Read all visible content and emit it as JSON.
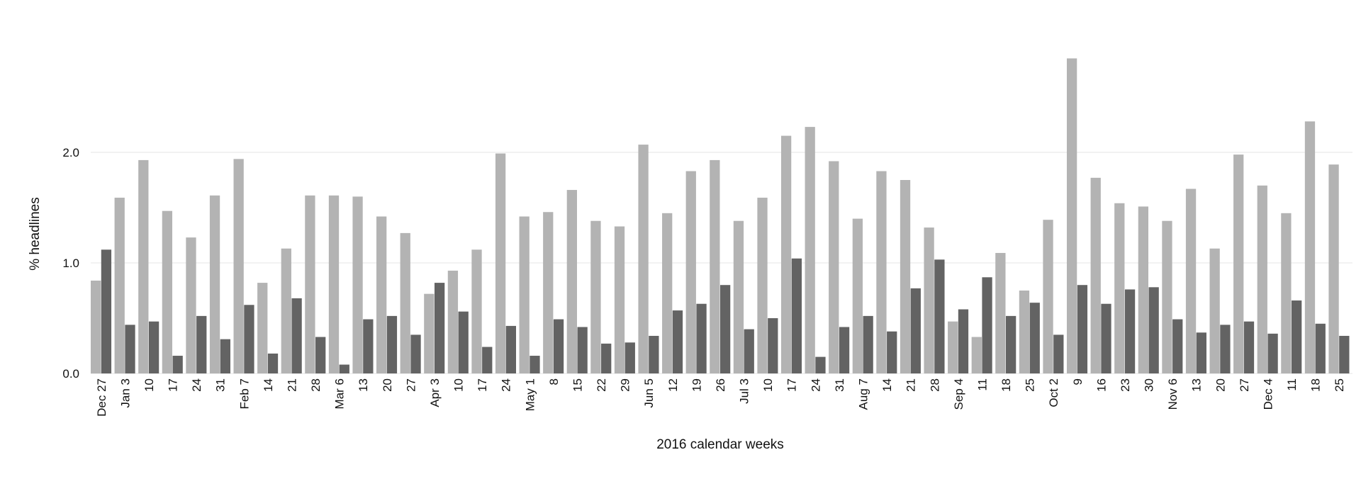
{
  "chart_data": {
    "type": "bar",
    "title": "",
    "xlabel": "2016 calendar weeks",
    "ylabel": "% headlines",
    "ylim": [
      0,
      3.0
    ],
    "yticks": [
      "0.0",
      "1.0",
      "2.0"
    ],
    "grid": true,
    "legend": "none",
    "categories": [
      "Dec 27",
      "Jan 3",
      "10",
      "17",
      "24",
      "31",
      "Feb 7",
      "14",
      "21",
      "28",
      "Mar 6",
      "13",
      "20",
      "27",
      "Apr 3",
      "10",
      "17",
      "24",
      "May 1",
      "8",
      "15",
      "22",
      "29",
      "Jun 5",
      "12",
      "19",
      "26",
      "Jul 3",
      "10",
      "17",
      "24",
      "31",
      "Aug 7",
      "14",
      "21",
      "28",
      "Sep 4",
      "11",
      "18",
      "25",
      "Oct 2",
      "9",
      "16",
      "23",
      "30",
      "Nov 6",
      "13",
      "20",
      "27",
      "Dec 4",
      "11",
      "18",
      "25"
    ],
    "series": [
      {
        "color": "#b3b3b3",
        "values": [
          0.84,
          1.59,
          1.93,
          1.47,
          1.23,
          1.61,
          1.94,
          0.82,
          1.13,
          1.61,
          1.61,
          1.6,
          1.42,
          1.27,
          0.72,
          0.93,
          1.12,
          1.99,
          1.42,
          1.46,
          1.66,
          1.38,
          1.33,
          2.07,
          1.45,
          1.83,
          1.93,
          1.38,
          1.59,
          2.15,
          2.23,
          1.92,
          1.4,
          1.83,
          1.75,
          1.32,
          0.47,
          0.33,
          1.09,
          0.75,
          1.39,
          2.85,
          1.77,
          1.54,
          1.51,
          1.38,
          1.67,
          1.13,
          1.98,
          1.7,
          1.45,
          2.28,
          1.89
        ]
      },
      {
        "color": "#636363",
        "values": [
          1.12,
          0.44,
          0.47,
          0.16,
          0.52,
          0.31,
          0.62,
          0.18,
          0.68,
          0.33,
          0.08,
          0.49,
          0.52,
          0.35,
          0.82,
          0.56,
          0.24,
          0.43,
          0.16,
          0.49,
          0.42,
          0.27,
          0.28,
          0.34,
          0.57,
          0.63,
          0.8,
          0.4,
          0.5,
          1.04,
          0.15,
          0.42,
          0.52,
          0.38,
          0.77,
          1.03,
          0.58,
          0.87,
          0.52,
          0.64,
          0.35,
          0.8,
          0.63,
          0.76,
          0.78,
          0.49,
          0.37,
          0.44,
          0.47,
          0.36,
          0.66,
          0.45,
          0.34
        ]
      }
    ]
  },
  "colors": {
    "grid": "#e5e5e5",
    "text": "#111111"
  }
}
